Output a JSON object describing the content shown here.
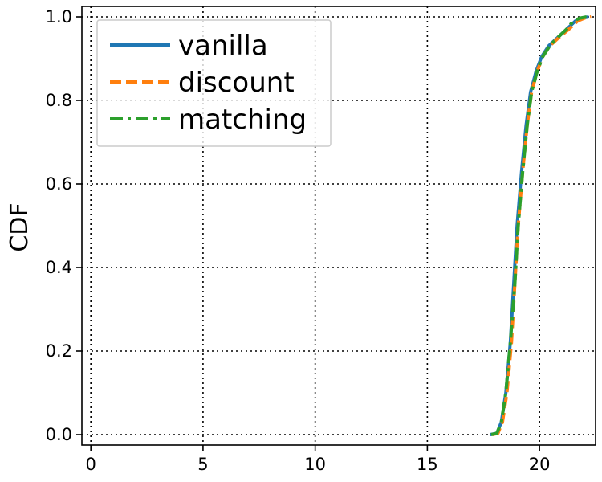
{
  "chart_data": {
    "type": "line",
    "title": "",
    "xlabel": "",
    "ylabel": "CDF",
    "xlim": [
      -0.4,
      22.5
    ],
    "ylim": [
      -0.025,
      1.025
    ],
    "xticks": [
      0,
      5,
      10,
      15,
      20
    ],
    "xtick_labels": [
      "0",
      "5",
      "10",
      "15",
      "20"
    ],
    "yticks": [
      0.0,
      0.2,
      0.4,
      0.6,
      0.8,
      1.0
    ],
    "ytick_labels": [
      "0.0",
      "0.2",
      "0.4",
      "0.6",
      "0.8",
      "1.0"
    ],
    "grid": true,
    "grid_style": "dotted",
    "legend_position": "top-left",
    "series": [
      {
        "name": "vanilla",
        "color": "#1f77b4",
        "dash": "solid",
        "x": [
          17.8,
          18.1,
          18.3,
          18.5,
          18.7,
          18.85,
          19.0,
          19.2,
          19.4,
          19.6,
          19.85,
          20.1,
          20.4,
          20.8,
          21.2,
          21.6,
          21.9,
          22.2
        ],
        "y": [
          0.0,
          0.003,
          0.03,
          0.1,
          0.22,
          0.36,
          0.5,
          0.63,
          0.74,
          0.82,
          0.87,
          0.905,
          0.93,
          0.95,
          0.97,
          0.99,
          0.997,
          1.0
        ]
      },
      {
        "name": "discount",
        "color": "#ff7f0e",
        "dash": "dashed",
        "x": [
          17.9,
          18.15,
          18.35,
          18.55,
          18.75,
          18.9,
          19.05,
          19.25,
          19.45,
          19.65,
          19.9,
          20.15,
          20.45,
          20.85,
          21.3,
          21.7,
          22.0,
          22.3
        ],
        "y": [
          0.0,
          0.003,
          0.03,
          0.1,
          0.22,
          0.36,
          0.5,
          0.63,
          0.74,
          0.82,
          0.87,
          0.905,
          0.93,
          0.95,
          0.97,
          0.99,
          0.997,
          1.0
        ]
      },
      {
        "name": "matching",
        "color": "#2ca02c",
        "dash": "dashdot",
        "x": [
          17.85,
          18.1,
          18.3,
          18.5,
          18.7,
          18.9,
          19.05,
          19.25,
          19.45,
          19.65,
          19.9,
          20.15,
          20.45,
          20.8,
          21.2,
          21.5,
          21.8,
          22.1
        ],
        "y": [
          0.0,
          0.003,
          0.03,
          0.1,
          0.22,
          0.36,
          0.5,
          0.63,
          0.74,
          0.82,
          0.87,
          0.905,
          0.93,
          0.95,
          0.97,
          0.99,
          0.997,
          1.0
        ]
      }
    ]
  }
}
